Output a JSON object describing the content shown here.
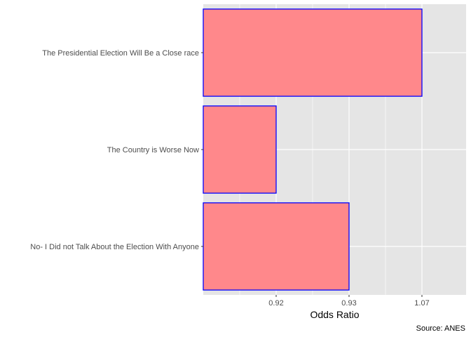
{
  "chart_data": {
    "type": "bar",
    "orientation": "horizontal",
    "categories": [
      "The Presidential Election Will Be a Close race",
      "The Country is Worse Now",
      "No- I Did not Talk About the Election With Anyone"
    ],
    "values": [
      1.07,
      0.92,
      0.93
    ],
    "category_order": "top-to-bottom",
    "value_axis": {
      "type": "discrete-labels",
      "tick_labels": [
        "0.92",
        "0.93",
        "1.07"
      ]
    },
    "xlabel": "Odds Ratio",
    "ylabel": "",
    "caption": "Source: ANES",
    "grid": true,
    "panel_background": "#e5e5e5",
    "bar_fill": "#ff888b",
    "bar_stroke": "#0000ff",
    "grid_color": "#ffffff"
  }
}
